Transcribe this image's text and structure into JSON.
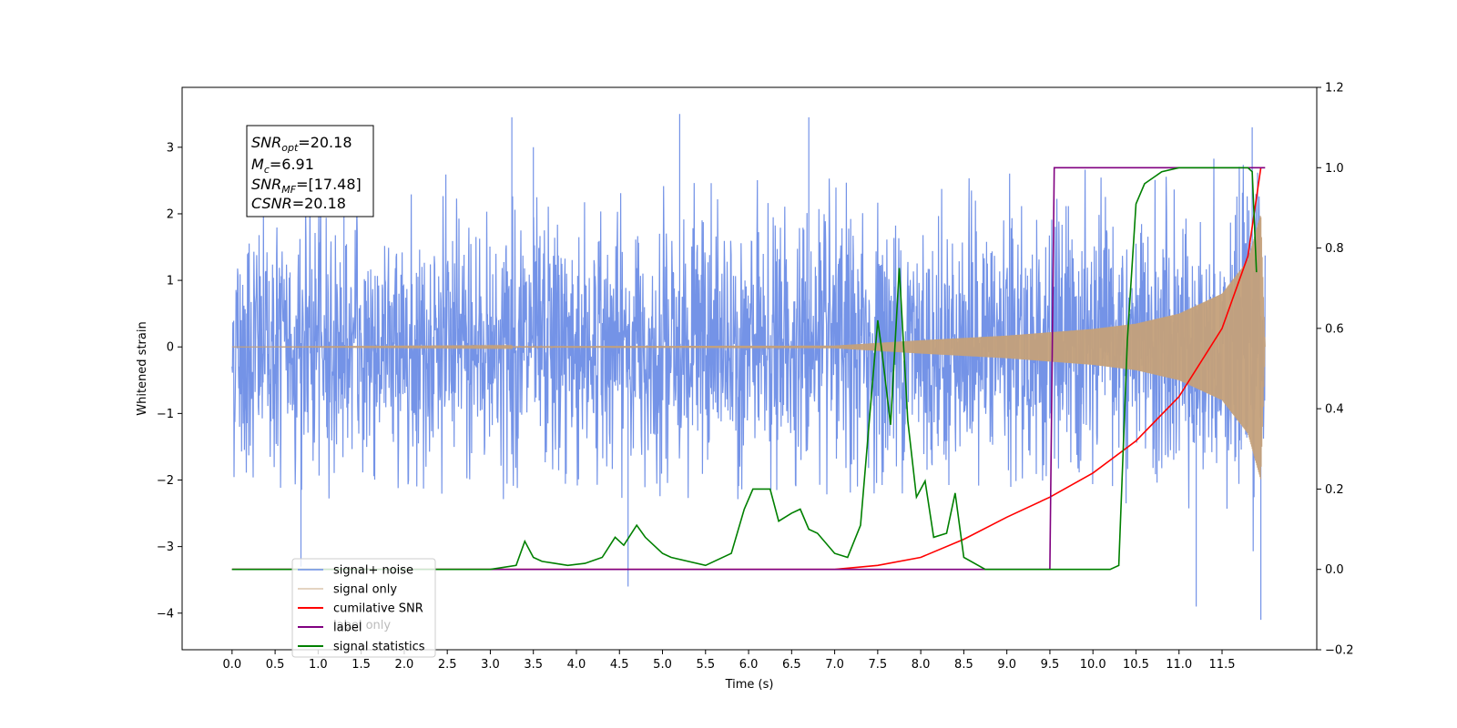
{
  "chart_data": {
    "type": "line",
    "xlabel": "Time (s)",
    "ylabel": "Whitened strain",
    "xlim": [
      -0.58,
      12.6
    ],
    "ylim": [
      -4.55,
      3.9
    ],
    "y2lim": [
      -0.2,
      1.2
    ],
    "x_ticks": [
      "0.0",
      "0.5",
      "1.0",
      "1.5",
      "2.0",
      "2.5",
      "3.0",
      "3.5",
      "4.0",
      "4.5",
      "5.0",
      "5.5",
      "6.0",
      "6.5",
      "7.0",
      "7.5",
      "8.0",
      "8.5",
      "9.0",
      "9.5",
      "10.0",
      "10.5",
      "11.0",
      "11.5"
    ],
    "y_ticks": [
      "3",
      "2",
      "1",
      "0",
      "−1",
      "−2",
      "−3",
      "−4"
    ],
    "y2_ticks": [
      "1.2",
      "1.0",
      "0.8",
      "0.6",
      "0.4",
      "0.2",
      "0.0",
      "−0.2"
    ],
    "grid": false,
    "legend_position": "lower-left",
    "annotation": {
      "snr_opt": {
        "base": "SNR",
        "sub": "opt",
        "value": "=20.18"
      },
      "mc": {
        "base": "M",
        "sub": "c",
        "value": "=6.91"
      },
      "snr_mf": {
        "base": "SNR",
        "sub": "MF",
        "value": "=[17.48]"
      },
      "csnr": {
        "base": "CSNR",
        "value": "=20.18"
      }
    },
    "series": [
      {
        "name": "signal+ noise",
        "color": "#6d8de6",
        "axis": "left",
        "noise_band": [
          -2.0,
          2.3
        ],
        "peak_values": [
          [
            1.3,
            3.3
          ],
          [
            3.25,
            3.45
          ],
          [
            3.5,
            3.0
          ],
          [
            5.2,
            3.5
          ],
          [
            6.7,
            3.45
          ],
          [
            4.6,
            -3.6
          ],
          [
            0.8,
            -3.3
          ],
          [
            11.2,
            -3.9
          ],
          [
            11.95,
            -4.1
          ],
          [
            11.85,
            3.3
          ]
        ]
      },
      {
        "name": "signal only",
        "color": "#c4a07a",
        "axis": "left",
        "envelope": [
          [
            0.0,
            0.0
          ],
          [
            7.0,
            0.02
          ],
          [
            8.0,
            0.1
          ],
          [
            9.0,
            0.17
          ],
          [
            10.0,
            0.27
          ],
          [
            10.5,
            0.35
          ],
          [
            11.0,
            0.5
          ],
          [
            11.5,
            0.8
          ],
          [
            11.8,
            1.3
          ],
          [
            11.95,
            2.0
          ],
          [
            12.0,
            0.0
          ]
        ]
      },
      {
        "name": "cumilative SNR",
        "color": "#ff0000",
        "axis": "right",
        "x": [
          0.0,
          7.0,
          7.5,
          8.0,
          8.5,
          9.0,
          9.5,
          10.0,
          10.5,
          11.0,
          11.5,
          11.8,
          11.95
        ],
        "y": [
          0.0,
          0.0,
          0.01,
          0.03,
          0.075,
          0.13,
          0.18,
          0.24,
          0.32,
          0.43,
          0.6,
          0.78,
          1.0
        ]
      },
      {
        "name": "label",
        "color": "#800080",
        "axis": "right",
        "x": [
          0.0,
          9.5,
          9.55,
          12.0
        ],
        "y": [
          0.0,
          0.0,
          1.0,
          1.0
        ]
      },
      {
        "name": "signal statistics",
        "color": "#008000",
        "axis": "right",
        "x": [
          0.0,
          3.0,
          3.3,
          3.4,
          3.5,
          3.6,
          3.75,
          3.9,
          4.1,
          4.3,
          4.45,
          4.55,
          4.7,
          4.8,
          5.0,
          5.1,
          5.5,
          5.8,
          5.95,
          6.05,
          6.25,
          6.35,
          6.5,
          6.6,
          6.7,
          6.8,
          7.0,
          7.15,
          7.3,
          7.5,
          7.55,
          7.65,
          7.75,
          7.85,
          7.95,
          8.05,
          8.15,
          8.3,
          8.4,
          8.5,
          8.75,
          9.0,
          10.2,
          10.3,
          10.4,
          10.5,
          10.6,
          10.8,
          11.0,
          11.8,
          11.85,
          11.9
        ],
        "y": [
          0.0,
          0.0,
          0.01,
          0.07,
          0.03,
          0.02,
          0.015,
          0.01,
          0.015,
          0.03,
          0.08,
          0.06,
          0.11,
          0.08,
          0.04,
          0.03,
          0.01,
          0.04,
          0.15,
          0.2,
          0.2,
          0.12,
          0.14,
          0.15,
          0.1,
          0.09,
          0.04,
          0.03,
          0.11,
          0.62,
          0.54,
          0.36,
          0.75,
          0.37,
          0.18,
          0.22,
          0.08,
          0.09,
          0.19,
          0.03,
          0.0,
          0.0,
          0.0,
          0.01,
          0.57,
          0.91,
          0.96,
          0.99,
          1.0,
          1.0,
          0.99,
          0.74
        ]
      }
    ],
    "legend_overlap_text": "label only"
  }
}
